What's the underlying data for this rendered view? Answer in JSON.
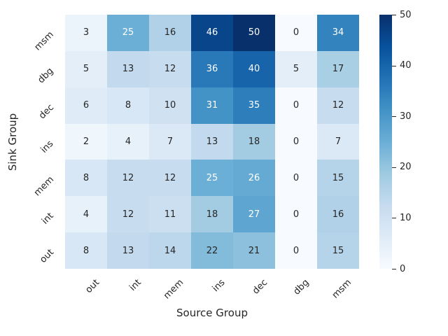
{
  "chart_data": {
    "type": "heatmap",
    "title": "",
    "xlabel": "Source Group",
    "ylabel": "Sink Group",
    "x_categories": [
      "out",
      "int",
      "mem",
      "ins",
      "dec",
      "dbg",
      "msm"
    ],
    "y_categories": [
      "msm",
      "dbg",
      "dec",
      "ins",
      "mem",
      "int",
      "out"
    ],
    "values": [
      [
        3,
        25,
        16,
        46,
        50,
        0,
        34
      ],
      [
        5,
        13,
        12,
        36,
        40,
        5,
        17
      ],
      [
        6,
        8,
        10,
        31,
        35,
        0,
        12
      ],
      [
        2,
        4,
        7,
        13,
        18,
        0,
        7
      ],
      [
        8,
        12,
        12,
        25,
        26,
        0,
        15
      ],
      [
        4,
        12,
        11,
        18,
        27,
        0,
        16
      ],
      [
        8,
        13,
        14,
        22,
        21,
        0,
        15
      ]
    ],
    "vmin": 0,
    "vmax": 50,
    "colorbar_ticks": [
      0,
      10,
      20,
      30,
      40,
      50
    ],
    "colormap": "Blues",
    "colormap_anchors": [
      "#f7fbff",
      "#deebf7",
      "#c6dbef",
      "#9ecae1",
      "#6baed6",
      "#4292c6",
      "#2171b5",
      "#08519c",
      "#08306b"
    ],
    "annot_dark_color": "#262626",
    "annot_light_color": "#ffffff",
    "background_color": "#ffffff",
    "legend_position": "right-colorbar",
    "grid": false
  }
}
